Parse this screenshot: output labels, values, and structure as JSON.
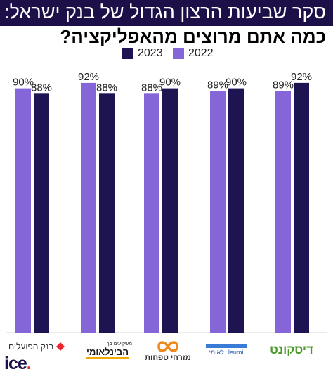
{
  "header": {
    "title": "סקר שביעות הרצון הגדול של בנק ישראל:",
    "subtitle": "כמה אתם מרוצים מהאפליקציה?"
  },
  "colors": {
    "band": "#1d1049",
    "series_2023": "#1f1452",
    "series_2022": "#8466d8"
  },
  "chart_data": {
    "type": "bar",
    "categories": [
      "דיסקונט",
      "לאומי",
      "מזרחי טפחות",
      "הבינלאומי",
      "בנק הפועלים"
    ],
    "series": [
      {
        "name": "2023",
        "values": [
          92,
          90,
          90,
          88,
          88
        ],
        "labels": [
          "92%",
          "90%",
          "90%",
          "88%",
          "88%"
        ],
        "color": "#1f1452"
      },
      {
        "name": "2022",
        "values": [
          89,
          89,
          88,
          92,
          90
        ],
        "labels": [
          "89%",
          "89%",
          "88%",
          "92%",
          "90%"
        ],
        "color": "#8466d8"
      }
    ],
    "ylim": [
      0,
      100
    ],
    "legend_position": "top-right",
    "grid": false
  },
  "logos": {
    "discount": "דיסקונט",
    "leumi": "לאומי",
    "leumi_en": "leumi",
    "mizrahi": "מזרחי טפחות",
    "beinleumi_small": "משקיעים בך",
    "beinleumi": "הבינלאומי",
    "hapoalim": "בנק הפועלים",
    "ice": "ice",
    "ice_dot": "."
  }
}
